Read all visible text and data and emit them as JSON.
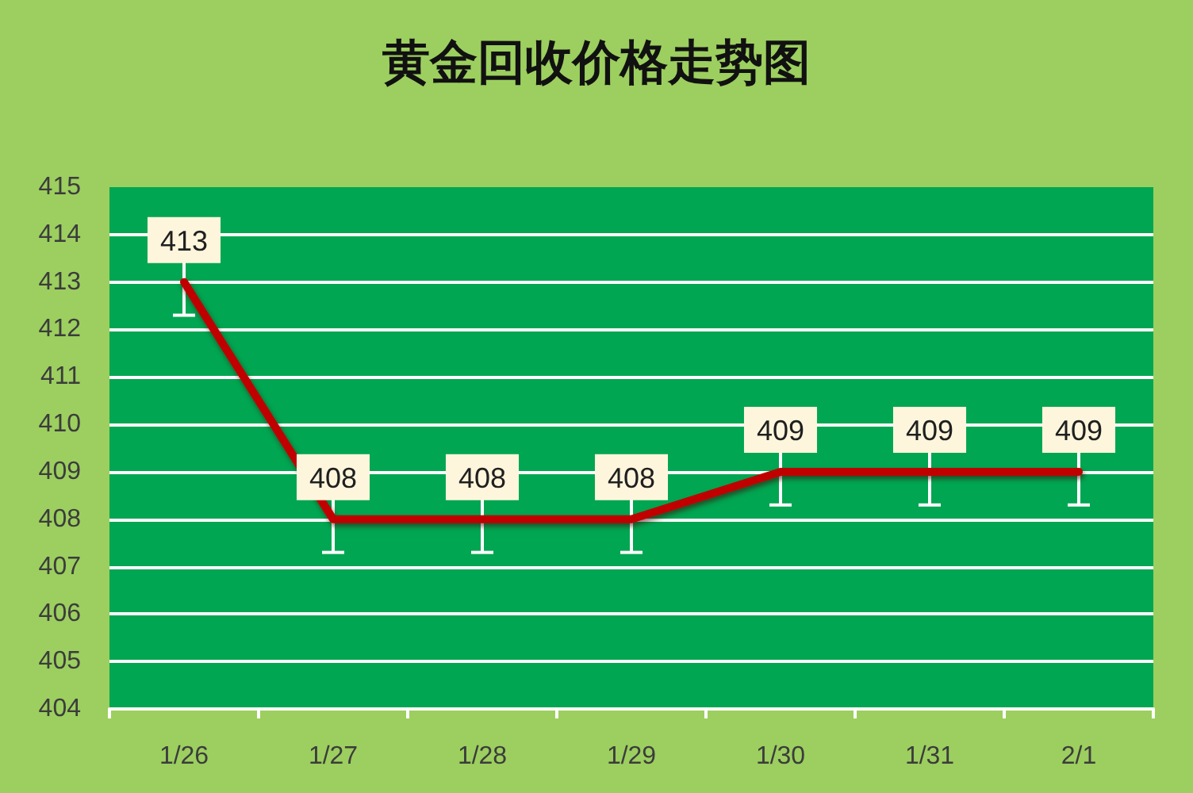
{
  "chart_data": {
    "type": "line",
    "title": "黄金回收价格走势图",
    "categories": [
      "1/26",
      "1/27",
      "1/28",
      "1/29",
      "1/30",
      "1/31",
      "2/1"
    ],
    "values": [
      413,
      408,
      408,
      408,
      409,
      409,
      409
    ],
    "color": "#c00000",
    "errors": [
      0.7,
      0.7,
      0.7,
      0.7,
      0.7,
      0.7,
      0.7
    ],
    "ylim": [
      404,
      415
    ],
    "yticks": [
      404,
      405,
      406,
      407,
      408,
      409,
      410,
      411,
      412,
      413,
      414,
      415
    ],
    "grid": "y",
    "data_labels": true,
    "marker": "none",
    "line_style": "solid"
  }
}
